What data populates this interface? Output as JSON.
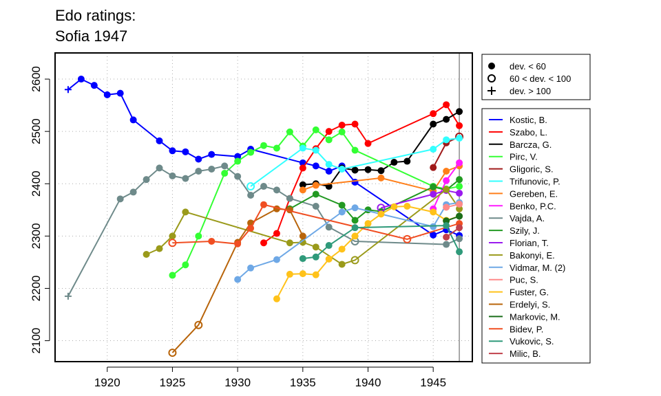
{
  "title": [
    "Edo ratings:",
    "Sofia 1947"
  ],
  "chart_data": {
    "type": "line",
    "xlim": [
      1916,
      1948
    ],
    "ylim": [
      2060,
      2650
    ],
    "x_ticks": [
      1920,
      1925,
      1930,
      1935,
      1940,
      1945
    ],
    "y_ticks": [
      2100,
      2200,
      2300,
      2400,
      2500,
      2600
    ],
    "grid": true,
    "event_year": 1947,
    "marker_legend": [
      {
        "label": "dev. < 60",
        "symbol": "filled-circle"
      },
      {
        "label": "60 < dev. < 100",
        "symbol": "open-circle"
      },
      {
        "label": "dev. > 100",
        "symbol": "plus"
      }
    ],
    "series": [
      {
        "name": "Kostic, B.",
        "color": "#0000ff",
        "points": [
          [
            1917,
            2580,
            "+"
          ],
          [
            1918,
            2600,
            "f"
          ],
          [
            1919,
            2588,
            "f"
          ],
          [
            1920,
            2570,
            "f"
          ],
          [
            1921,
            2573,
            "f"
          ],
          [
            1922,
            2522,
            "f"
          ],
          [
            1924,
            2482,
            "f"
          ],
          [
            1925,
            2463,
            "f"
          ],
          [
            1926,
            2461,
            "f"
          ],
          [
            1927,
            2447,
            "f"
          ],
          [
            1928,
            2456,
            "f"
          ],
          [
            1930,
            2452,
            "f"
          ],
          [
            1931,
            2466,
            "f"
          ],
          [
            1935,
            2440,
            "f"
          ],
          [
            1936,
            2434,
            "f"
          ],
          [
            1937,
            2424,
            "f"
          ],
          [
            1938,
            2434,
            "f"
          ],
          [
            1939,
            2403,
            "f"
          ],
          [
            1945,
            2302,
            "f"
          ],
          [
            1946,
            2312,
            "f"
          ],
          [
            1947,
            2301,
            "f"
          ]
        ]
      },
      {
        "name": "Szabo, L.",
        "color": "#ff0000",
        "points": [
          [
            1932,
            2287,
            "f"
          ],
          [
            1933,
            2305,
            "f"
          ],
          [
            1934,
            2372,
            "f"
          ],
          [
            1935,
            2430,
            "f"
          ],
          [
            1936,
            2467,
            "f"
          ],
          [
            1937,
            2500,
            "f"
          ],
          [
            1938,
            2512,
            "f"
          ],
          [
            1939,
            2514,
            "f"
          ],
          [
            1940,
            2477,
            "f"
          ],
          [
            1945,
            2534,
            "f"
          ],
          [
            1946,
            2551,
            "f"
          ],
          [
            1947,
            2511,
            "f"
          ]
        ]
      },
      {
        "name": "Barcza, G.",
        "color": "#000000",
        "points": [
          [
            1935,
            2398,
            "f"
          ],
          [
            1936,
            2400,
            "f"
          ],
          [
            1937,
            2395,
            "f"
          ],
          [
            1938,
            2430,
            "f"
          ],
          [
            1939,
            2426,
            "f"
          ],
          [
            1940,
            2427,
            "f"
          ],
          [
            1941,
            2425,
            "f"
          ],
          [
            1942,
            2441,
            "f"
          ],
          [
            1943,
            2443,
            "f"
          ],
          [
            1945,
            2514,
            "f"
          ],
          [
            1946,
            2523,
            "f"
          ],
          [
            1947,
            2538,
            "f"
          ]
        ]
      },
      {
        "name": "Pirc, V.",
        "color": "#33ff33",
        "points": [
          [
            1925,
            2225,
            "f"
          ],
          [
            1926,
            2245,
            "f"
          ],
          [
            1927,
            2300,
            "f"
          ],
          [
            1929,
            2420,
            "f"
          ],
          [
            1930,
            2443,
            "f"
          ],
          [
            1931,
            2460,
            "f"
          ],
          [
            1932,
            2473,
            "f"
          ],
          [
            1933,
            2468,
            "f"
          ],
          [
            1934,
            2499,
            "f"
          ],
          [
            1935,
            2472,
            "f"
          ],
          [
            1936,
            2503,
            "f"
          ],
          [
            1937,
            2484,
            "f"
          ],
          [
            1938,
            2499,
            "f"
          ],
          [
            1939,
            2464,
            "f"
          ],
          [
            1945,
            2395,
            "f"
          ],
          [
            1946,
            2390,
            "f"
          ],
          [
            1947,
            2395,
            "f"
          ]
        ]
      },
      {
        "name": "Gligoric, S.",
        "color": "#a01a1a",
        "points": [
          [
            1945,
            2431,
            "f"
          ],
          [
            1946,
            2478,
            "f"
          ],
          [
            1947,
            2490,
            "o"
          ]
        ]
      },
      {
        "name": "Trifunovic, P.",
        "color": "#33ffff",
        "points": [
          [
            1931,
            2395,
            "o"
          ],
          [
            1935,
            2468,
            "f"
          ],
          [
            1936,
            2464,
            "f"
          ],
          [
            1937,
            2437,
            "f"
          ],
          [
            1938,
            2428,
            "f"
          ],
          [
            1945,
            2466,
            "f"
          ],
          [
            1946,
            2484,
            "f"
          ],
          [
            1947,
            2487,
            "f"
          ]
        ]
      },
      {
        "name": "Gereben, E.",
        "color": "#ff7f1a",
        "points": [
          [
            1935,
            2388,
            "f"
          ],
          [
            1936,
            2397,
            "f"
          ],
          [
            1941,
            2411,
            "f"
          ],
          [
            1945,
            2386,
            "f"
          ],
          [
            1946,
            2424,
            "f"
          ],
          [
            1947,
            2434,
            "f"
          ]
        ]
      },
      {
        "name": "Benko, P.C.",
        "color": "#ff1aff",
        "points": [
          [
            1945,
            2352,
            "f"
          ],
          [
            1946,
            2406,
            "f"
          ],
          [
            1947,
            2440,
            "f"
          ]
        ]
      },
      {
        "name": "Vajda, A.",
        "color": "#6e8a8a",
        "points": [
          [
            1917,
            2185,
            "+"
          ],
          [
            1921,
            2371,
            "f"
          ],
          [
            1922,
            2384,
            "f"
          ],
          [
            1923,
            2408,
            "f"
          ],
          [
            1924,
            2430,
            "f"
          ],
          [
            1925,
            2415,
            "f"
          ],
          [
            1926,
            2410,
            "f"
          ],
          [
            1927,
            2424,
            "f"
          ],
          [
            1928,
            2428,
            "f"
          ],
          [
            1929,
            2434,
            "f"
          ],
          [
            1930,
            2414,
            "f"
          ],
          [
            1931,
            2378,
            "f"
          ],
          [
            1932,
            2395,
            "f"
          ],
          [
            1933,
            2388,
            "f"
          ],
          [
            1934,
            2372,
            "f"
          ],
          [
            1936,
            2357,
            "f"
          ],
          [
            1937,
            2317,
            "f"
          ],
          [
            1939,
            2290,
            "o"
          ],
          [
            1946,
            2284,
            "f"
          ],
          [
            1947,
            2295,
            "f"
          ]
        ]
      },
      {
        "name": "Szily, J.",
        "color": "#229922",
        "points": [
          [
            1934,
            2352,
            "f"
          ],
          [
            1936,
            2380,
            "f"
          ],
          [
            1938,
            2359,
            "f"
          ],
          [
            1939,
            2330,
            "f"
          ],
          [
            1940,
            2350,
            "f"
          ],
          [
            1941,
            2347,
            "f"
          ],
          [
            1945,
            2394,
            "f"
          ],
          [
            1946,
            2388,
            "f"
          ],
          [
            1947,
            2408,
            "f"
          ]
        ]
      },
      {
        "name": "Florian, T.",
        "color": "#9a1aee",
        "points": [
          [
            1941,
            2354,
            "o"
          ],
          [
            1945,
            2380,
            "f"
          ],
          [
            1946,
            2387,
            "f"
          ],
          [
            1947,
            2382,
            "f"
          ]
        ]
      },
      {
        "name": "Bakonyi, E.",
        "color": "#9a9a1a",
        "points": [
          [
            1923,
            2265,
            "f"
          ],
          [
            1924,
            2276,
            "f"
          ],
          [
            1925,
            2300,
            "f"
          ],
          [
            1926,
            2346,
            "f"
          ],
          [
            1934,
            2287,
            "f"
          ],
          [
            1935,
            2288,
            "f"
          ],
          [
            1936,
            2279,
            "f"
          ],
          [
            1938,
            2246,
            "f"
          ],
          [
            1939,
            2254,
            "o"
          ],
          [
            1946,
            2389,
            "f"
          ],
          [
            1947,
            2352,
            "f"
          ]
        ]
      },
      {
        "name": "Vidmar, M. (2)",
        "color": "#6ea8e6",
        "points": [
          [
            1930,
            2217,
            "f"
          ],
          [
            1931,
            2239,
            "f"
          ],
          [
            1933,
            2255,
            "f"
          ],
          [
            1938,
            2346,
            "f"
          ],
          [
            1939,
            2354,
            "f"
          ],
          [
            1945,
            2318,
            "f"
          ],
          [
            1946,
            2360,
            "f"
          ],
          [
            1947,
            2364,
            "f"
          ]
        ]
      },
      {
        "name": "Puc, S.",
        "color": "#ff8a8a",
        "points": [
          [
            1946,
            2355,
            "f"
          ],
          [
            1947,
            2361,
            "f"
          ]
        ]
      },
      {
        "name": "Fuster, G.",
        "color": "#ffc21a",
        "points": [
          [
            1933,
            2180,
            "f"
          ],
          [
            1934,
            2227,
            "f"
          ],
          [
            1935,
            2228,
            "f"
          ],
          [
            1936,
            2226,
            "f"
          ],
          [
            1937,
            2256,
            "f"
          ],
          [
            1938,
            2275,
            "f"
          ],
          [
            1939,
            2300,
            "f"
          ],
          [
            1940,
            2324,
            "f"
          ],
          [
            1941,
            2342,
            "f"
          ],
          [
            1942,
            2356,
            "f"
          ],
          [
            1943,
            2357,
            "f"
          ],
          [
            1945,
            2346,
            "f"
          ],
          [
            1946,
            2330,
            "f"
          ],
          [
            1947,
            2338,
            "f"
          ]
        ]
      },
      {
        "name": "Erdelyi, S.",
        "color": "#b8640a",
        "points": [
          [
            1925,
            2077,
            "o"
          ],
          [
            1927,
            2130,
            "o"
          ],
          [
            1930,
            2288,
            "f"
          ],
          [
            1931,
            2325,
            "f"
          ],
          [
            1933,
            2352,
            "f"
          ],
          [
            1934,
            2350,
            "f"
          ],
          [
            1935,
            2300,
            "f"
          ]
        ]
      },
      {
        "name": "Markovic, M.",
        "color": "#1a6e1a",
        "points": [
          [
            1946,
            2329,
            "f"
          ],
          [
            1947,
            2338,
            "f"
          ]
        ]
      },
      {
        "name": "Bidev, P.",
        "color": "#f04e22",
        "points": [
          [
            1925,
            2287,
            "o"
          ],
          [
            1928,
            2290,
            "f"
          ],
          [
            1930,
            2285,
            "f"
          ],
          [
            1931,
            2315,
            "f"
          ],
          [
            1932,
            2360,
            "f"
          ],
          [
            1943,
            2294,
            "o"
          ],
          [
            1947,
            2324,
            "f"
          ]
        ]
      },
      {
        "name": "Vukovic, S.",
        "color": "#2f9a7a",
        "points": [
          [
            1935,
            2257,
            "f"
          ],
          [
            1936,
            2260,
            "f"
          ],
          [
            1937,
            2282,
            "f"
          ],
          [
            1939,
            2316,
            "f"
          ],
          [
            1946,
            2320,
            "f"
          ],
          [
            1947,
            2270,
            "f"
          ]
        ]
      },
      {
        "name": "Milic, B.",
        "color": "#c0404a",
        "points": [
          [
            1946,
            2298,
            "f"
          ],
          [
            1947,
            2316,
            "f"
          ]
        ]
      }
    ]
  }
}
